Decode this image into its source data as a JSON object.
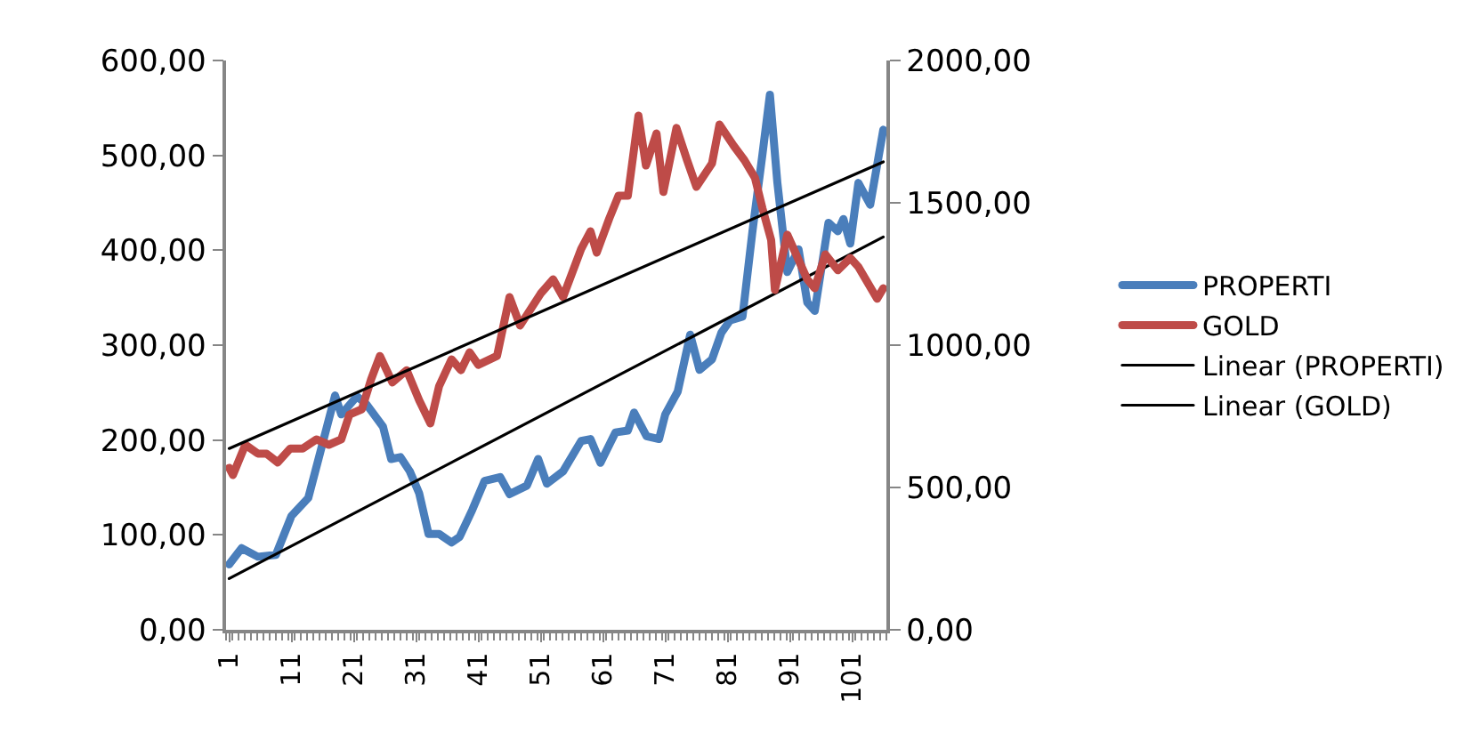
{
  "chart_data": {
    "type": "line",
    "xlim": [
      0.5,
      106.5
    ],
    "xticks": [
      1,
      11,
      21,
      31,
      41,
      51,
      61,
      71,
      81,
      91,
      101
    ],
    "ylim": [
      0,
      600
    ],
    "yticks": [
      {
        "value": 0,
        "label": "0,00"
      },
      {
        "value": 100,
        "label": "100,00"
      },
      {
        "value": 200,
        "label": "200,00"
      },
      {
        "value": 300,
        "label": "300,00"
      },
      {
        "value": 400,
        "label": "400,00"
      },
      {
        "value": 500,
        "label": "500,00"
      },
      {
        "value": 600,
        "label": "600,00"
      }
    ],
    "y2lim": [
      0,
      2000
    ],
    "y2ticks": [
      {
        "value": 0,
        "label": "0,00"
      },
      {
        "value": 500,
        "label": "500,00"
      },
      {
        "value": 1000,
        "label": "1000,00"
      },
      {
        "value": 1500,
        "label": "1500,00"
      },
      {
        "value": 2000,
        "label": "2000,00"
      }
    ],
    "grid": false,
    "legend": "right",
    "marker": "none",
    "line_style": "solid",
    "series": [
      {
        "name": "PROPERTI",
        "color": "#4a7ebb",
        "x": [
          1,
          3,
          5.6,
          8.5,
          11,
          13.7,
          15.7,
          18,
          19,
          21.5,
          23,
          25.7,
          27,
          28.5,
          30,
          31.5,
          33,
          34.7,
          36.7,
          38,
          40,
          42,
          44.5,
          46,
          48.8,
          50.6,
          52,
          54.6,
          57.5,
          59,
          60.6,
          63,
          65,
          66,
          68,
          70,
          71,
          73,
          75,
          76.5,
          78.5,
          80,
          81.4,
          83.4,
          85,
          86.6,
          87.8,
          89,
          90.6,
          92.4,
          93.8,
          95,
          97.2,
          98.7,
          99.6,
          100.7,
          102,
          103.9,
          106
        ],
        "values": [
          69,
          86,
          77,
          79,
          120,
          139,
          189,
          247,
          227,
          246,
          238,
          214,
          180,
          182,
          167,
          144,
          101,
          101,
          92,
          98,
          126,
          157,
          161,
          143,
          152,
          180,
          154,
          167,
          199,
          201,
          176,
          208,
          210,
          229,
          204,
          201,
          227,
          251,
          311,
          274,
          285,
          313,
          326,
          330,
          420,
          501,
          564,
          471,
          377,
          401,
          345,
          336,
          429,
          420,
          433,
          407,
          471,
          448,
          527
        ]
      },
      {
        "name": "GOLD",
        "color": "#be4b48",
        "axis": "y2",
        "x": [
          1,
          1.6,
          3.6,
          5.6,
          7,
          8.8,
          10.8,
          12.8,
          15,
          17,
          19,
          20.3,
          22.3,
          23.8,
          25.2,
          27.2,
          29.5,
          31.5,
          33.3,
          34.7,
          36.7,
          38.2,
          39.6,
          41,
          44,
          46,
          47.7,
          51,
          53,
          54.6,
          57.5,
          59,
          60,
          62,
          63.5,
          65,
          66.7,
          67.9,
          69.6,
          70.7,
          72.8,
          74.5,
          76,
          78.5,
          79.7,
          82,
          83.7,
          85.4,
          86.6,
          88,
          88.6,
          90.6,
          92,
          93.8,
          95,
          96.7,
          98.7,
          100.7,
          102,
          105,
          106
        ],
        "values": [
          569,
          544,
          650,
          619,
          619,
          588,
          637,
          637,
          669,
          650,
          669,
          756,
          775,
          881,
          962,
          869,
          912,
          806,
          725,
          856,
          950,
          912,
          975,
          931,
          962,
          1169,
          1069,
          1181,
          1231,
          1169,
          1338,
          1400,
          1325,
          1444,
          1525,
          1525,
          1806,
          1631,
          1744,
          1538,
          1763,
          1650,
          1556,
          1638,
          1775,
          1700,
          1650,
          1588,
          1481,
          1369,
          1194,
          1388,
          1319,
          1231,
          1200,
          1319,
          1263,
          1306,
          1275,
          1163,
          1200
        ]
      },
      {
        "name": "Linear (PROPERTI)",
        "type": "line",
        "color": "#000000",
        "x": [
          1,
          106
        ],
        "values": [
          54,
          414
        ]
      },
      {
        "name": "Linear (GOLD)",
        "type": "line",
        "color": "#000000",
        "axis": "y2",
        "x": [
          1,
          106
        ],
        "values": [
          637,
          1644
        ]
      }
    ]
  }
}
